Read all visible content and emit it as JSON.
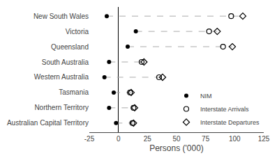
{
  "chart_data": {
    "type": "dot",
    "orientation": "horizontal",
    "categories": [
      "New South Wales",
      "Victoria",
      "Queensland",
      "South Australia",
      "Western Australia",
      "Tasmania",
      "Northern Territory",
      "Australian Capital Territory"
    ],
    "series": [
      {
        "name": "NIM",
        "color": "#000000",
        "marker": "circle",
        "values": [
          -10,
          15,
          8,
          -8,
          -12,
          -4,
          -8,
          -2
        ]
      },
      {
        "name": "Interstate Arrivals",
        "color": "#000000",
        "marker": "circle-open",
        "values": [
          97,
          78,
          90,
          20,
          35,
          10,
          13,
          12
        ]
      },
      {
        "name": "Interstate Departures",
        "color": "#000000",
        "marker": "diamond-open",
        "values": [
          107,
          85,
          98,
          22,
          38,
          11,
          14,
          13
        ]
      }
    ],
    "color": "#aaaaaa",
    "line_style": "dash",
    "xlabel": "Persons ('000)",
    "xlim": [
      -25,
      125
    ],
    "xticks": [
      -25,
      0,
      25,
      50,
      75,
      100,
      125
    ],
    "grid": false,
    "legend": "lower right"
  }
}
